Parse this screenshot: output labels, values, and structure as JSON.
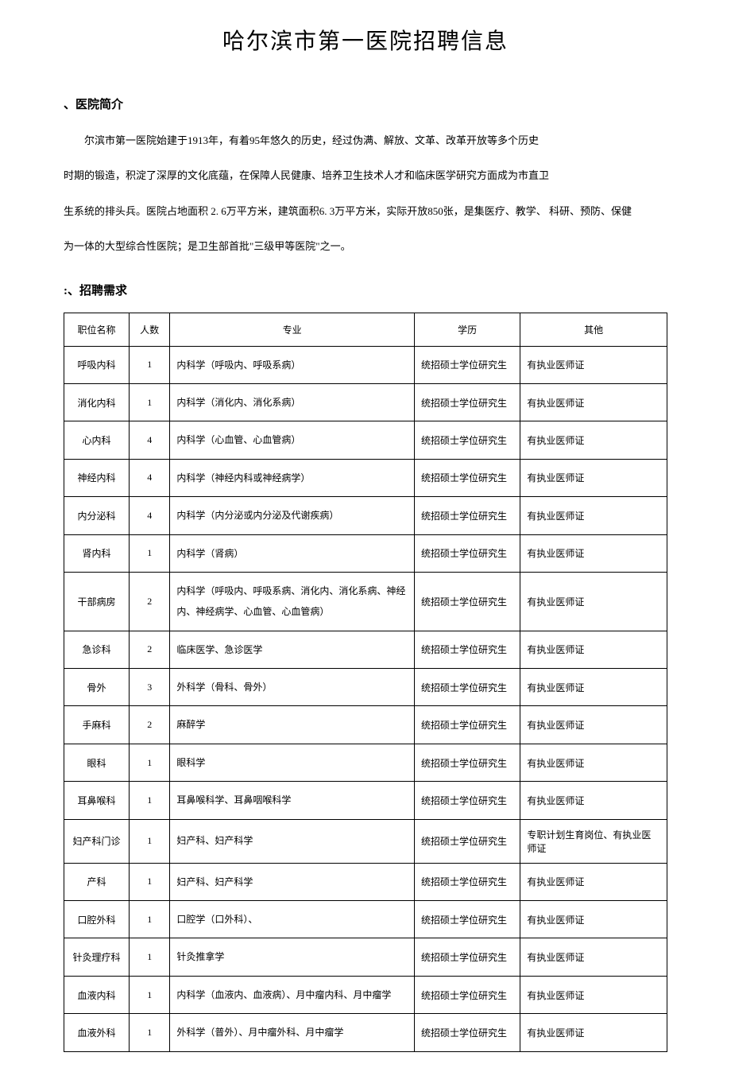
{
  "title": "哈尔滨市第一医院招聘信息",
  "section1_heading": "、医院简介",
  "intro_p1": "尔滨市第一医院始建于1913年，有着95年悠久的历史，经过伪满、解放、文革、改革开放等多个历史",
  "intro_p2": "时期的锻造，积淀了深厚的文化底蕴，在保障人民健康、培养卫生技术人才和临床医学研究方面成为市直卫",
  "intro_p3": "生系统的排头兵。医院占地面积 2. 6万平方米，建筑面积6. 3万平方米，实际开放850张，是集医疗、教学、 科研、预防、保健",
  "intro_p4": "为一体的大型综合性医院；是卫生部首批\"三级甲等医院\"之一。",
  "section2_heading": ":、招聘需求",
  "table": {
    "headers": {
      "position": "职位名称",
      "count": "人数",
      "major": "专业",
      "degree": "学历",
      "other": "其他"
    },
    "rows": [
      {
        "position": "呼吸内科",
        "count": "1",
        "major": "内科学（呼吸内、呼吸系病）",
        "degree": "统招硕士学位研究生",
        "other": "有执业医师证"
      },
      {
        "position": "消化内科",
        "count": "1",
        "major": "内科学（消化内、消化系病）",
        "degree": "统招硕士学位研究生",
        "other": "有执业医师证"
      },
      {
        "position": "心内科",
        "count": "4",
        "major": "内科学（心血管、心血管病）",
        "degree": "统招硕士学位研究生",
        "other": "有执业医师证"
      },
      {
        "position": "神经内科",
        "count": "4",
        "major": "内科学（神经内科或神经病学）",
        "degree": "统招硕士学位研究生",
        "other": "有执业医师证"
      },
      {
        "position": "内分泌科",
        "count": "4",
        "major": "内科学（内分泌或内分泌及代谢疾病）",
        "degree": "统招硕士学位研究生",
        "other": "有执业医师证"
      },
      {
        "position": "肾内科",
        "count": "1",
        "major": "内科学（肾病）",
        "degree": "统招硕士学位研究生",
        "other": "有执业医师证"
      },
      {
        "position": "干部病房",
        "count": "2",
        "major": "内科学（呼吸内、呼吸系病、消化内、消化系病、神经内、神经病学、心血管、心血管病）",
        "degree": "统招硕士学位研究生",
        "other": "有执业医师证"
      },
      {
        "position": "急诊科",
        "count": "2",
        "major": "临床医学、急诊医学",
        "degree": "统招硕士学位研究生",
        "other": "有执业医师证"
      },
      {
        "position": "骨外",
        "count": "3",
        "major": "外科学（骨科、骨外）",
        "degree": "统招硕士学位研究生",
        "other": "有执业医师证"
      },
      {
        "position": "手麻科",
        "count": "2",
        "major": "麻醉学",
        "degree": "统招硕士学位研究生",
        "other": "有执业医师证"
      },
      {
        "position": "眼科",
        "count": "1",
        "major": "眼科学",
        "degree": "统招硕士学位研究生",
        "other": "有执业医师证"
      },
      {
        "position": "耳鼻喉科",
        "count": "1",
        "major": "耳鼻喉科学、耳鼻咽喉科学",
        "degree": "统招硕士学位研究生",
        "other": "有执业医师证"
      },
      {
        "position": "妇产科门诊",
        "count": "1",
        "major": "妇产科、妇产科学",
        "degree": "统招硕士学位研究生",
        "other": "专职计划生育岗位、有执业医师证"
      },
      {
        "position": "产科",
        "count": "1",
        "major": "妇产科、妇产科学",
        "degree": "统招硕士学位研究生",
        "other": "有执业医师证"
      },
      {
        "position": "口腔外科",
        "count": "1",
        "major": "口腔学（口外科）、",
        "degree": "统招硕士学位研究生",
        "other": "有执业医师证"
      },
      {
        "position": "针灸理疗科",
        "count": "1",
        "major": "针灸推拿学",
        "degree": "统招硕士学位研究生",
        "other": "有执业医师证"
      },
      {
        "position": "血液内科",
        "count": "1",
        "major": "内科学（血液内、血液病）、月中瘤内科、月中瘤学",
        "degree": "统招硕士学位研究生",
        "other": "有执业医师证"
      },
      {
        "position": "血液外科",
        "count": "1",
        "major": "外科学（普外）、月中瘤外科、月中瘤学",
        "degree": "统招硕士学位研究生",
        "other": "有执业医师证"
      }
    ]
  }
}
